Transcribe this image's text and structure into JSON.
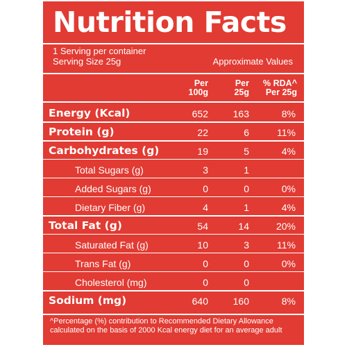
{
  "title": "Nutrition Facts",
  "serving": {
    "per_container": "1 Serving per container",
    "size": "Serving Size 25g",
    "note": "Approximate Values"
  },
  "columns": {
    "per100": [
      "Per",
      "100g"
    ],
    "per25": [
      "Per",
      "25g"
    ],
    "rda": [
      "% RDA^",
      "Per 25g"
    ]
  },
  "rows": [
    {
      "label": "Energy (Kcal)",
      "per100": "652",
      "per25": "163",
      "rda": "8%",
      "bold": true
    },
    {
      "label": "Protein (g)",
      "per100": "22",
      "per25": "6",
      "rda": "11%",
      "bold": true
    },
    {
      "label": "Carbohydrates (g)",
      "per100": "19",
      "per25": "5",
      "rda": "4%",
      "bold": true
    },
    {
      "label": "Total Sugars (g)",
      "per100": "3",
      "per25": "1",
      "rda": "",
      "bold": false
    },
    {
      "label": "Added Sugars (g)",
      "per100": "0",
      "per25": "0",
      "rda": "0%",
      "bold": false
    },
    {
      "label": "Dietary Fiber (g)",
      "per100": "4",
      "per25": "1",
      "rda": "4%",
      "bold": false
    },
    {
      "label": "Total Fat (g)",
      "per100": "54",
      "per25": "14",
      "rda": "20%",
      "bold": true
    },
    {
      "label": "Saturated Fat (g)",
      "per100": "10",
      "per25": "3",
      "rda": "11%",
      "bold": false
    },
    {
      "label": "Trans Fat (g)",
      "per100": "0",
      "per25": "0",
      "rda": "0%",
      "bold": false
    },
    {
      "label": "Cholesterol (mg)",
      "per100": "0",
      "per25": "0",
      "rda": "",
      "bold": false
    },
    {
      "label": "Sodium (mg)",
      "per100": "640",
      "per25": "160",
      "rda": "8%",
      "bold": true
    }
  ],
  "footnote": [
    "^Percentage (%) contribution to Recommended Dietary Allowance",
    "calculated on the basis of 2000 Kcal energy diet for an average adult"
  ],
  "colors": {
    "panel": "#e13b33",
    "text": "#ffffff"
  }
}
